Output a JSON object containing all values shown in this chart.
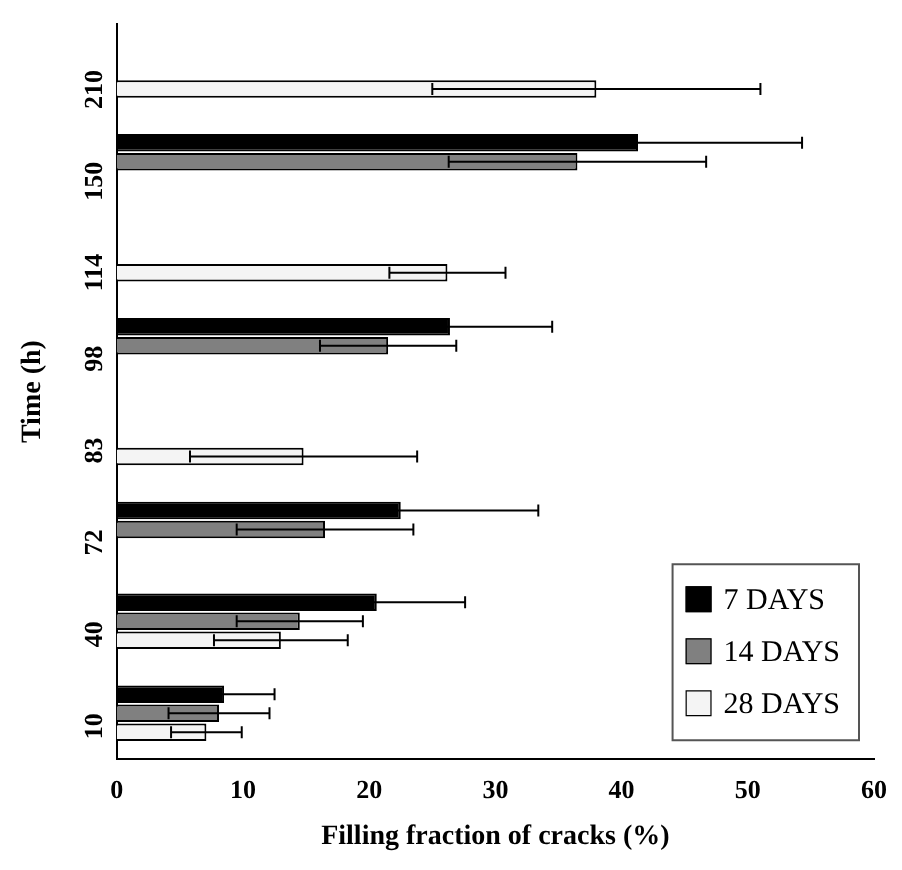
{
  "chart_data": {
    "type": "bar",
    "orientation": "horizontal",
    "xlabel": "Filling fraction of cracks (%)",
    "ylabel": "Time (h)",
    "categories": [
      "210",
      "150",
      "114",
      "98",
      "83",
      "72",
      "40",
      "10"
    ],
    "series": [
      {
        "name": "7 DAYS",
        "color": "#000000",
        "values": [
          null,
          41.3,
          null,
          26.4,
          null,
          22.5,
          20.6,
          8.5
        ],
        "errors": [
          null,
          13,
          null,
          8.1,
          null,
          10.9,
          7,
          4
        ]
      },
      {
        "name": "14 DAYS",
        "color": "#808080",
        "values": [
          null,
          36.5,
          null,
          21.5,
          null,
          16.5,
          14.5,
          8.1
        ],
        "errors": [
          null,
          10.2,
          null,
          5.4,
          null,
          7,
          5,
          4
        ]
      },
      {
        "name": "28 DAYS",
        "color": "#f4f4f4",
        "values": [
          38,
          null,
          26.2,
          null,
          14.8,
          null,
          13,
          7.1
        ],
        "errors": [
          13,
          null,
          4.6,
          null,
          9,
          null,
          5.3,
          2.8
        ]
      }
    ],
    "xlim": [
      0,
      60
    ],
    "xticks": [
      0,
      10,
      20,
      30,
      40,
      50,
      60
    ],
    "grid": false,
    "legend": "bottom right"
  }
}
